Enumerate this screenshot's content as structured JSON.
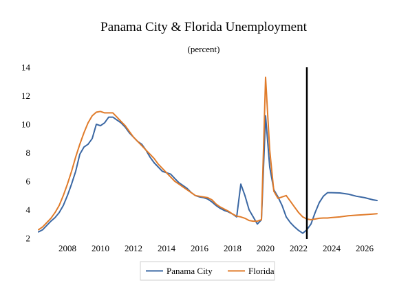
{
  "chart_data": {
    "type": "line",
    "title": "Panama City & Florida Unemployment",
    "subtitle": "(percent)",
    "xlabel": "",
    "ylabel": "",
    "xlim": [
      2006.25,
      2026.75
    ],
    "ylim": [
      2,
      14
    ],
    "x_ticks": [
      2008,
      2010,
      2012,
      2014,
      2016,
      2018,
      2020,
      2022,
      2024,
      2026
    ],
    "y_ticks": [
      2,
      4,
      6,
      8,
      10,
      12,
      14
    ],
    "grid": false,
    "legend_position": "bottom",
    "forecast_marker_x": 2022.5,
    "series": [
      {
        "name": "Panama City",
        "color": "#3a67a3",
        "points": [
          [
            2006.25,
            2.45
          ],
          [
            2006.5,
            2.6
          ],
          [
            2006.75,
            2.9
          ],
          [
            2007,
            3.2
          ],
          [
            2007.25,
            3.45
          ],
          [
            2007.5,
            3.8
          ],
          [
            2007.75,
            4.3
          ],
          [
            2008,
            5.0
          ],
          [
            2008.25,
            5.8
          ],
          [
            2008.5,
            6.7
          ],
          [
            2008.75,
            7.9
          ],
          [
            2009,
            8.4
          ],
          [
            2009.25,
            8.6
          ],
          [
            2009.5,
            9.0
          ],
          [
            2009.75,
            10.0
          ],
          [
            2010,
            9.9
          ],
          [
            2010.25,
            10.1
          ],
          [
            2010.5,
            10.5
          ],
          [
            2010.75,
            10.5
          ],
          [
            2011,
            10.3
          ],
          [
            2011.25,
            10.1
          ],
          [
            2011.5,
            9.8
          ],
          [
            2011.75,
            9.4
          ],
          [
            2012,
            9.1
          ],
          [
            2012.25,
            8.8
          ],
          [
            2012.5,
            8.6
          ],
          [
            2012.75,
            8.2
          ],
          [
            2013,
            7.7
          ],
          [
            2013.25,
            7.3
          ],
          [
            2013.5,
            7.0
          ],
          [
            2013.75,
            6.7
          ],
          [
            2014,
            6.6
          ],
          [
            2014.25,
            6.5
          ],
          [
            2014.5,
            6.2
          ],
          [
            2014.75,
            5.9
          ],
          [
            2015,
            5.7
          ],
          [
            2015.25,
            5.5
          ],
          [
            2015.5,
            5.2
          ],
          [
            2015.75,
            5.0
          ],
          [
            2016,
            4.9
          ],
          [
            2016.25,
            4.85
          ],
          [
            2016.5,
            4.75
          ],
          [
            2016.75,
            4.55
          ],
          [
            2017,
            4.3
          ],
          [
            2017.25,
            4.1
          ],
          [
            2017.5,
            3.95
          ],
          [
            2017.75,
            3.85
          ],
          [
            2018,
            3.7
          ],
          [
            2018.25,
            3.5
          ],
          [
            2018.5,
            5.8
          ],
          [
            2018.75,
            5.0
          ],
          [
            2019,
            4.0
          ],
          [
            2019.25,
            3.5
          ],
          [
            2019.5,
            3.0
          ],
          [
            2019.75,
            3.3
          ],
          [
            2020,
            10.6
          ],
          [
            2020.25,
            7.0
          ],
          [
            2020.5,
            5.4
          ],
          [
            2020.75,
            4.9
          ],
          [
            2021,
            4.3
          ],
          [
            2021.25,
            3.5
          ],
          [
            2021.5,
            3.1
          ],
          [
            2021.75,
            2.8
          ],
          [
            2022,
            2.55
          ],
          [
            2022.25,
            2.35
          ],
          [
            2022.5,
            2.6
          ],
          [
            2022.75,
            3.0
          ],
          [
            2023,
            3.8
          ],
          [
            2023.25,
            4.5
          ],
          [
            2023.5,
            4.95
          ],
          [
            2023.75,
            5.2
          ],
          [
            2024,
            5.2
          ],
          [
            2024.5,
            5.18
          ],
          [
            2025,
            5.1
          ],
          [
            2025.5,
            4.95
          ],
          [
            2026,
            4.85
          ],
          [
            2026.5,
            4.7
          ],
          [
            2026.75,
            4.65
          ]
        ]
      },
      {
        "name": "Florida",
        "color": "#e07b2a",
        "points": [
          [
            2006.25,
            2.6
          ],
          [
            2006.5,
            2.8
          ],
          [
            2006.75,
            3.1
          ],
          [
            2007,
            3.4
          ],
          [
            2007.25,
            3.8
          ],
          [
            2007.5,
            4.3
          ],
          [
            2007.75,
            5.0
          ],
          [
            2008,
            5.8
          ],
          [
            2008.25,
            6.7
          ],
          [
            2008.5,
            7.7
          ],
          [
            2008.75,
            8.6
          ],
          [
            2009,
            9.4
          ],
          [
            2009.25,
            10.1
          ],
          [
            2009.5,
            10.6
          ],
          [
            2009.75,
            10.85
          ],
          [
            2010,
            10.9
          ],
          [
            2010.25,
            10.8
          ],
          [
            2010.5,
            10.8
          ],
          [
            2010.75,
            10.8
          ],
          [
            2011,
            10.5
          ],
          [
            2011.25,
            10.2
          ],
          [
            2011.5,
            9.9
          ],
          [
            2011.75,
            9.5
          ],
          [
            2012,
            9.1
          ],
          [
            2012.25,
            8.8
          ],
          [
            2012.5,
            8.5
          ],
          [
            2012.75,
            8.2
          ],
          [
            2013,
            7.9
          ],
          [
            2013.25,
            7.6
          ],
          [
            2013.5,
            7.2
          ],
          [
            2013.75,
            6.9
          ],
          [
            2014,
            6.6
          ],
          [
            2014.25,
            6.3
          ],
          [
            2014.5,
            6.0
          ],
          [
            2014.75,
            5.8
          ],
          [
            2015,
            5.6
          ],
          [
            2015.25,
            5.4
          ],
          [
            2015.5,
            5.2
          ],
          [
            2015.75,
            5.0
          ],
          [
            2016,
            4.95
          ],
          [
            2016.25,
            4.9
          ],
          [
            2016.5,
            4.85
          ],
          [
            2016.75,
            4.7
          ],
          [
            2017,
            4.4
          ],
          [
            2017.25,
            4.2
          ],
          [
            2017.5,
            4.05
          ],
          [
            2017.75,
            3.9
          ],
          [
            2018,
            3.7
          ],
          [
            2018.25,
            3.55
          ],
          [
            2018.5,
            3.5
          ],
          [
            2018.75,
            3.4
          ],
          [
            2019,
            3.25
          ],
          [
            2019.25,
            3.2
          ],
          [
            2019.5,
            3.2
          ],
          [
            2019.75,
            3.3
          ],
          [
            2020,
            13.3
          ],
          [
            2020.25,
            8.2
          ],
          [
            2020.5,
            5.3
          ],
          [
            2020.75,
            4.8
          ],
          [
            2021,
            4.9
          ],
          [
            2021.25,
            5.0
          ],
          [
            2021.5,
            4.6
          ],
          [
            2021.75,
            4.2
          ],
          [
            2022,
            3.8
          ],
          [
            2022.25,
            3.5
          ],
          [
            2022.5,
            3.35
          ],
          [
            2022.75,
            3.3
          ],
          [
            2023,
            3.35
          ],
          [
            2023.25,
            3.4
          ],
          [
            2023.5,
            3.42
          ],
          [
            2023.75,
            3.42
          ],
          [
            2024,
            3.45
          ],
          [
            2024.5,
            3.5
          ],
          [
            2025,
            3.58
          ],
          [
            2025.5,
            3.62
          ],
          [
            2026,
            3.66
          ],
          [
            2026.5,
            3.7
          ],
          [
            2026.75,
            3.72
          ]
        ]
      }
    ]
  }
}
